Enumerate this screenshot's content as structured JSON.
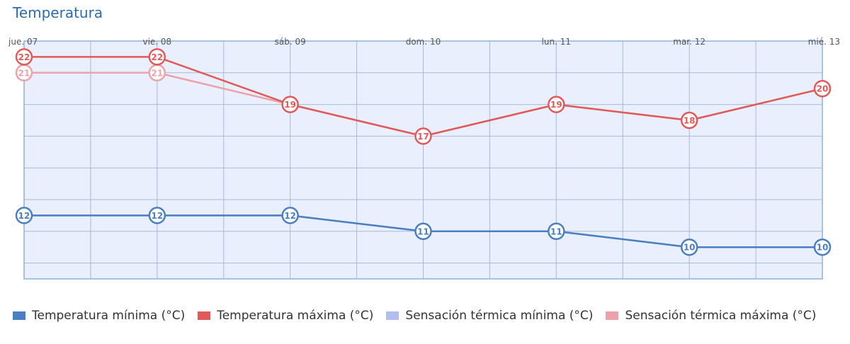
{
  "chart_data": {
    "type": "line",
    "title": "Temperatura",
    "categories": [
      "jue. 07",
      "vie. 08",
      "sáb. 09",
      "dom. 10",
      "lun. 11",
      "mar. 12",
      "mié. 13"
    ],
    "ylim": [
      8,
      23
    ],
    "grid": true,
    "legend_position": "bottom",
    "series": [
      {
        "name": "Temperatura mínima (°C)",
        "color": "#4a7fc1",
        "values": [
          12,
          12,
          12,
          11,
          11,
          10,
          10
        ],
        "labeled": true
      },
      {
        "name": "Temperatura máxima (°C)",
        "color": "#e05a5a",
        "values": [
          22,
          22,
          19,
          17,
          19,
          18,
          20
        ],
        "labeled": true
      },
      {
        "name": "Sensación térmica mínima (°C)",
        "color": "#b3bdf0",
        "values": [
          12,
          12,
          12,
          11,
          11,
          10,
          10
        ],
        "labeled": false
      },
      {
        "name": "Sensación térmica máxima (°C)",
        "color": "#eaa3a8",
        "values": [
          21,
          21,
          19,
          17,
          19,
          18,
          20
        ],
        "labeled": true
      }
    ]
  }
}
